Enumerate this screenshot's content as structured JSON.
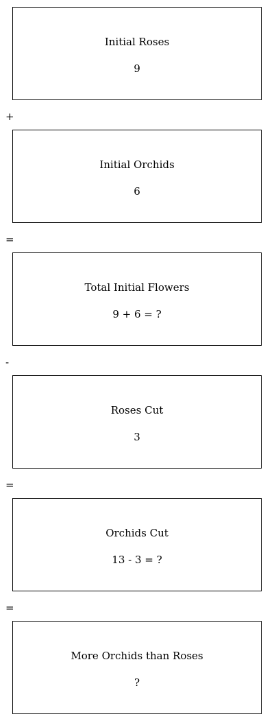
{
  "steps": [
    {
      "title": "Initial Roses",
      "value": "9"
    },
    {
      "title": "Initial Orchids",
      "value": "6"
    },
    {
      "title": "Total Initial Flowers",
      "value": "9 + 6 = ?"
    },
    {
      "title": "Roses Cut",
      "value": "3"
    },
    {
      "title": "Orchids Cut",
      "value": "13 - 3 = ?"
    },
    {
      "title": "More Orchids than Roses",
      "value": "?"
    }
  ],
  "operators": [
    "+",
    "=",
    "-",
    "=",
    "="
  ]
}
